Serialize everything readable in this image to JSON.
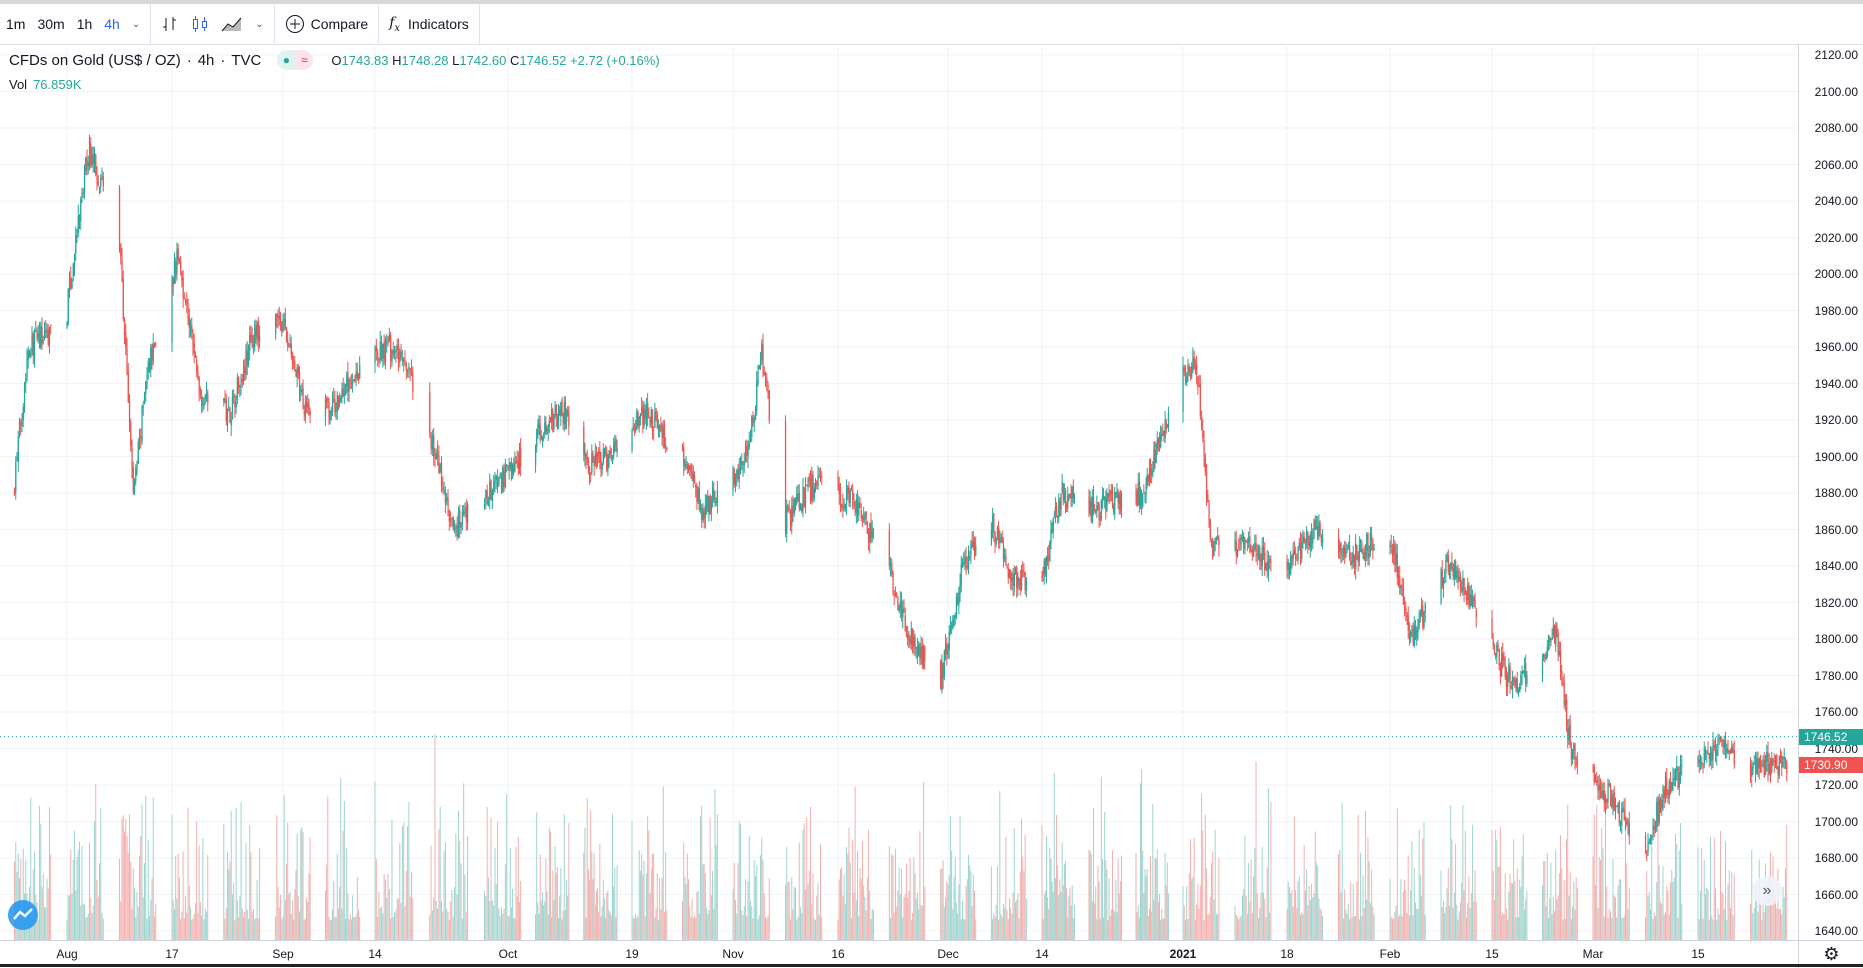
{
  "toolbar": {
    "intervals": [
      {
        "label": "1m"
      },
      {
        "label": "30m"
      },
      {
        "label": "1h"
      },
      {
        "label": "4h",
        "active": true
      }
    ],
    "compare_label": "Compare",
    "indicators_label": "Indicators"
  },
  "legend": {
    "symbol": "CFDs on Gold (US$ / OZ)",
    "interval": "4h",
    "exchange": "TVC",
    "open_key": "O",
    "open": "1743.83",
    "high_key": "H",
    "high": "1748.28",
    "low_key": "L",
    "low": "1742.60",
    "close_key": "C",
    "close": "1746.52",
    "change": "+2.72 (+0.16%)",
    "vol_label": "Vol",
    "vol_value": "76.859K"
  },
  "price_axis": {
    "labels": [
      "2120.00",
      "2100.00",
      "2080.00",
      "2060.00",
      "2040.00",
      "2020.00",
      "2000.00",
      "1980.00",
      "1960.00",
      "1940.00",
      "1920.00",
      "1900.00",
      "1880.00",
      "1860.00",
      "1840.00",
      "1820.00",
      "1800.00",
      "1780.00",
      "1760.00",
      "1740.00",
      "1720.00",
      "1700.00",
      "1680.00",
      "1660.00",
      "1640.00"
    ],
    "last_price": "1746.52",
    "last_price_color": "#26a69a",
    "marker_price": "1730.90",
    "marker_color": "#ef5350"
  },
  "colors": {
    "up": "#26a69a",
    "down": "#ef5350",
    "vol_up": "#9fd4cf",
    "vol_down": "#f2b1af",
    "accent": "#2962ff"
  },
  "chart_data": {
    "type": "candlestick",
    "ylim": [
      1635,
      2125
    ],
    "time_ticks": [
      {
        "label": "Aug",
        "date": "2020-08-03"
      },
      {
        "label": "17",
        "date": "2020-08-17"
      },
      {
        "label": "Sep",
        "date": "2020-09-01"
      },
      {
        "label": "14",
        "date": "2020-09-14"
      },
      {
        "label": "Oct",
        "date": "2020-10-01"
      },
      {
        "label": "19",
        "date": "2020-10-19"
      },
      {
        "label": "Nov",
        "date": "2020-11-02"
      },
      {
        "label": "16",
        "date": "2020-11-16"
      },
      {
        "label": "Dec",
        "date": "2020-12-01"
      },
      {
        "label": "14",
        "date": "2020-12-14"
      },
      {
        "label": "2021",
        "date": "2021-01-04"
      },
      {
        "label": "18",
        "date": "2021-01-18"
      },
      {
        "label": "Feb",
        "date": "2021-02-01"
      },
      {
        "label": "15",
        "date": "2021-02-15"
      },
      {
        "label": "Mar",
        "date": "2021-03-01"
      },
      {
        "label": "15",
        "date": "2021-03-15"
      }
    ],
    "price_path": [
      [
        "2020-07-27",
        1880
      ],
      [
        "2020-07-29",
        1960
      ],
      [
        "2020-08-03",
        1975
      ],
      [
        "2020-08-06",
        2068
      ],
      [
        "2020-08-10",
        2030
      ],
      [
        "2020-08-12",
        1880
      ],
      [
        "2020-08-14",
        1950
      ],
      [
        "2020-08-18",
        2010
      ],
      [
        "2020-08-21",
        1935
      ],
      [
        "2020-08-25",
        1925
      ],
      [
        "2020-08-28",
        1965
      ],
      [
        "2020-09-01",
        1975
      ],
      [
        "2020-09-04",
        1930
      ],
      [
        "2020-09-08",
        1925
      ],
      [
        "2020-09-11",
        1945
      ],
      [
        "2020-09-16",
        1960
      ],
      [
        "2020-09-18",
        1950
      ],
      [
        "2020-09-22",
        1900
      ],
      [
        "2020-09-24",
        1860
      ],
      [
        "2020-09-30",
        1885
      ],
      [
        "2020-10-05",
        1910
      ],
      [
        "2020-10-09",
        1925
      ],
      [
        "2020-10-13",
        1895
      ],
      [
        "2020-10-16",
        1900
      ],
      [
        "2020-10-21",
        1925
      ],
      [
        "2020-10-26",
        1900
      ],
      [
        "2020-10-29",
        1870
      ],
      [
        "2020-11-04",
        1900
      ],
      [
        "2020-11-06",
        1955
      ],
      [
        "2020-11-09",
        1865
      ],
      [
        "2020-11-13",
        1885
      ],
      [
        "2020-11-18",
        1875
      ],
      [
        "2020-11-23",
        1840
      ],
      [
        "2020-11-25",
        1810
      ],
      [
        "2020-11-30",
        1775
      ],
      [
        "2020-12-03",
        1835
      ],
      [
        "2020-12-07",
        1865
      ],
      [
        "2020-12-10",
        1835
      ],
      [
        "2020-12-14",
        1830
      ],
      [
        "2020-12-17",
        1880
      ],
      [
        "2020-12-22",
        1870
      ],
      [
        "2020-12-29",
        1880
      ],
      [
        "2021-01-04",
        1945
      ],
      [
        "2021-01-06",
        1950
      ],
      [
        "2021-01-08",
        1850
      ],
      [
        "2021-01-13",
        1850
      ],
      [
        "2021-01-18",
        1835
      ],
      [
        "2021-01-22",
        1860
      ],
      [
        "2021-01-27",
        1845
      ],
      [
        "2021-02-01",
        1860
      ],
      [
        "2021-02-04",
        1800
      ],
      [
        "2021-02-09",
        1840
      ],
      [
        "2021-02-12",
        1825
      ],
      [
        "2021-02-17",
        1780
      ],
      [
        "2021-02-19",
        1775
      ],
      [
        "2021-02-24",
        1805
      ],
      [
        "2021-02-26",
        1740
      ],
      [
        "2021-03-03",
        1715
      ],
      [
        "2021-03-08",
        1685
      ],
      [
        "2021-03-11",
        1720
      ],
      [
        "2021-03-16",
        1735
      ],
      [
        "2021-03-18",
        1740
      ],
      [
        "2021-03-23",
        1730
      ],
      [
        "2021-03-26",
        1733
      ]
    ]
  }
}
